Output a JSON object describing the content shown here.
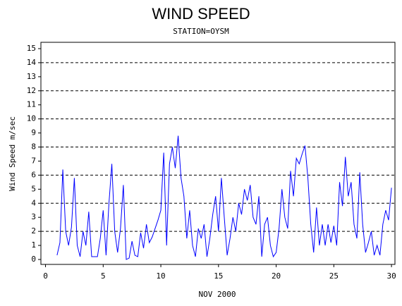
{
  "chart_data": {
    "type": "line",
    "title": "WIND SPEED",
    "subtitle": "STATION=OYSM",
    "y_label": "Wind Speed m/sec",
    "x_label": "NOV 2000",
    "x": [
      1.0,
      1.25,
      1.5,
      1.75,
      2.0,
      2.25,
      2.5,
      2.75,
      3.0,
      3.25,
      3.5,
      3.75,
      4.0,
      4.25,
      4.5,
      4.75,
      5.0,
      5.25,
      5.5,
      5.75,
      6.0,
      6.25,
      6.5,
      6.75,
      7.0,
      7.25,
      7.5,
      7.75,
      8.0,
      8.25,
      8.5,
      8.75,
      9.0,
      9.25,
      9.5,
      9.75,
      10.0,
      10.25,
      10.5,
      10.75,
      11.0,
      11.25,
      11.5,
      11.75,
      12.0,
      12.25,
      12.5,
      12.75,
      13.0,
      13.25,
      13.5,
      13.75,
      14.0,
      14.25,
      14.5,
      14.75,
      15.0,
      15.25,
      15.5,
      15.75,
      16.0,
      16.25,
      16.5,
      16.75,
      17.0,
      17.25,
      17.5,
      17.75,
      18.0,
      18.25,
      18.5,
      18.75,
      19.0,
      19.25,
      19.5,
      19.75,
      20.0,
      20.25,
      20.5,
      20.75,
      21.0,
      21.25,
      21.5,
      21.75,
      22.0,
      22.25,
      22.5,
      22.75,
      23.0,
      23.25,
      23.5,
      23.75,
      24.0,
      24.25,
      24.5,
      24.75,
      25.0,
      25.25,
      25.5,
      25.75,
      26.0,
      26.25,
      26.5,
      26.75,
      27.0,
      27.25,
      27.5,
      27.75,
      28.0,
      28.25,
      28.5,
      28.75,
      29.0,
      29.25,
      29.5,
      29.75,
      30.0
    ],
    "series": [
      {
        "name": "Wind Speed",
        "color": "#0000ff",
        "values": [
          0.3,
          1.2,
          6.4,
          2,
          1,
          2.3,
          5.8,
          1,
          0.2,
          2,
          1,
          3.4,
          0.2,
          0.2,
          0.2,
          1.5,
          3.5,
          0.3,
          4,
          6.8,
          2,
          0.5,
          2.2,
          5.3,
          0,
          0.1,
          1.3,
          0.3,
          0.2,
          1.9,
          0.8,
          2.5,
          1.2,
          1.6,
          2.2,
          2.8,
          3.5,
          7.6,
          1,
          6.8,
          8,
          6.5,
          8.8,
          5.8,
          4.5,
          1.5,
          3.5,
          1,
          0.2,
          2.2,
          1.5,
          2.5,
          0.2,
          1.5,
          3.2,
          4.5,
          2,
          5.8,
          3,
          0.3,
          1.5,
          3,
          2,
          4,
          3.2,
          5,
          4.2,
          5.3,
          3,
          2.5,
          4.5,
          0.2,
          2.5,
          3,
          1,
          0.2,
          0.5,
          2.2,
          5,
          3,
          2.2,
          6.3,
          4.5,
          7.2,
          6.8,
          7.5,
          8.1,
          5.8,
          2.5,
          0.5,
          3.7,
          1,
          2.5,
          1,
          2.5,
          1.2,
          2.4,
          1,
          5.5,
          3.8,
          7.3,
          4.5,
          5.5,
          2.5,
          1.5,
          6.2,
          2.5,
          0.5,
          1.2,
          2,
          0.3,
          1,
          0.3,
          2.5,
          3.5,
          2.8,
          5.1
        ]
      }
    ],
    "xlim": [
      -0.4,
      30.3
    ],
    "ylim": [
      -0.35,
      15.45
    ],
    "xticks": [
      0,
      5,
      10,
      15,
      20,
      25,
      30
    ],
    "yticks": [
      0,
      1,
      2,
      3,
      4,
      5,
      6,
      7,
      8,
      9,
      10,
      11,
      12,
      13,
      14,
      15
    ],
    "grid": [
      2,
      4,
      6,
      8,
      10,
      12,
      14
    ]
  }
}
